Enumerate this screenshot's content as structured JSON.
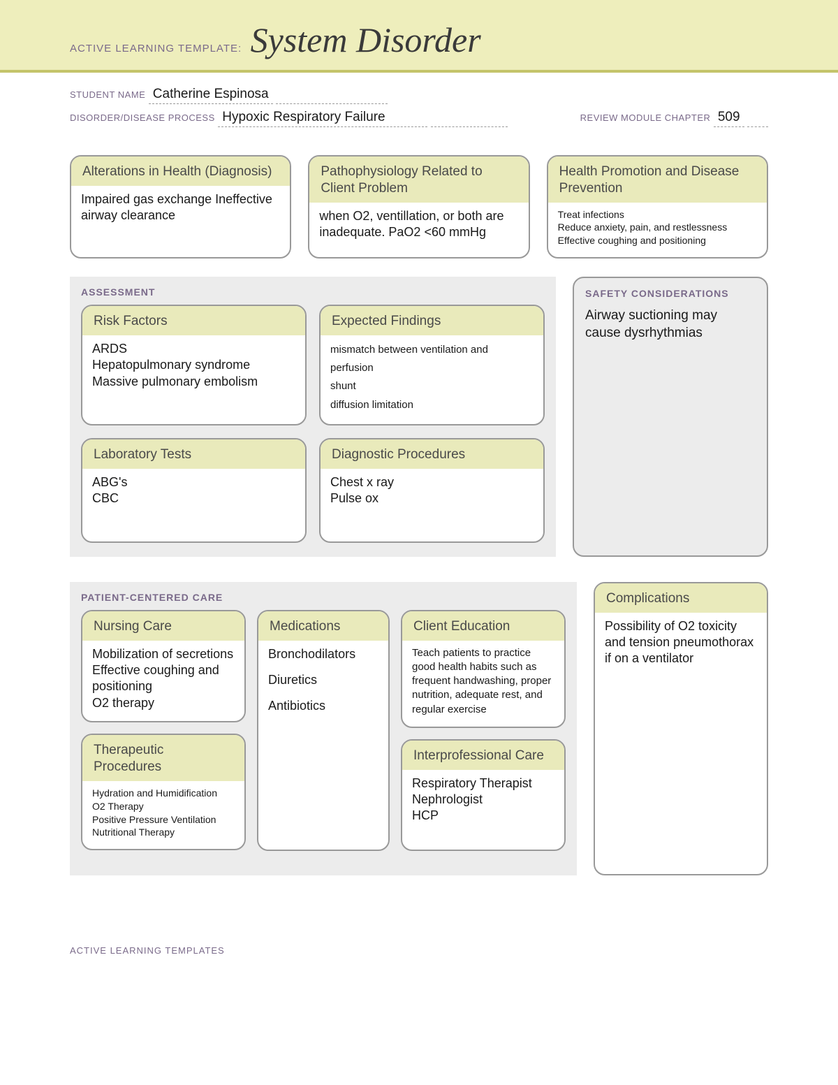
{
  "header": {
    "label": "ACTIVE LEARNING TEMPLATE:",
    "title": "System Disorder"
  },
  "fields": {
    "student_label": "STUDENT NAME",
    "student_value": "Catherine Espinosa",
    "disorder_label": "DISORDER/DISEASE PROCESS",
    "disorder_value": "Hypoxic Respiratory Failure",
    "chapter_label": "REVIEW MODULE CHAPTER",
    "chapter_value": "509"
  },
  "top": {
    "alterations": {
      "title": "Alterations in Health (Diagnosis)",
      "body": "Impaired gas exchange Ineffective airway clearance"
    },
    "patho": {
      "title": "Pathophysiology Related to Client Problem",
      "body": "when O2, ventillation, or both are inadequate. PaO2 <60 mmHg"
    },
    "promo": {
      "title": "Health Promotion and Disease Prevention",
      "body": "Treat infections\nReduce anxiety, pain, and restlessness\nEffective coughing and positioning"
    }
  },
  "assessment": {
    "title": "ASSESSMENT",
    "risk": {
      "title": "Risk Factors",
      "body": "ARDS\nHepatopulmonary syndrome\nMassive pulmonary embolism"
    },
    "expect": {
      "title": "Expected Findings",
      "body": "mismatch between ventilation and perfusion\nshunt\ndiffusion limitation"
    },
    "labs": {
      "title": "Laboratory Tests",
      "body": "ABG's\nCBC"
    },
    "diag": {
      "title": "Diagnostic Procedures",
      "body": "Chest x ray\nPulse ox"
    }
  },
  "safety": {
    "title": "SAFETY CONSIDERATIONS",
    "body": "Airway suctioning may cause dysrhythmias"
  },
  "pcc": {
    "title": "PATIENT-CENTERED CARE",
    "nursing": {
      "title": "Nursing Care",
      "body": "Mobilization of secretions Effective coughing and positioning\nO2 therapy"
    },
    "thera": {
      "title": "Therapeutic Procedures",
      "body": "Hydration and Humidification\nO2 Therapy\nPositive Pressure Ventilation\nNutritional Therapy"
    },
    "meds": {
      "title": "Medications",
      "l1": "Bronchodilators",
      "l2": "Diuretics",
      "l3": "Antibiotics"
    },
    "edu": {
      "title": "Client Education",
      "body": "Teach patients to practice good health habits such as frequent handwashing, proper nutrition, adequate rest, and regular exercise"
    },
    "inter": {
      "title": "Interprofessional Care",
      "body": "Respiratory Therapist\nNephrologist\nHCP"
    }
  },
  "comp": {
    "title": "Complications",
    "body": "Possibility of O2 toxicity and tension pneumothorax if on a ventilator"
  },
  "footer": "ACTIVE LEARNING TEMPLATES"
}
